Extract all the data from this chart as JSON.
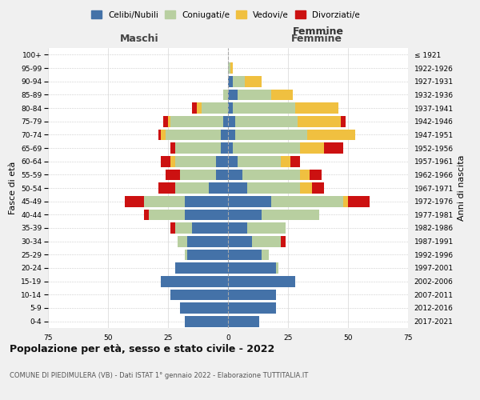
{
  "age_groups": [
    "0-4",
    "5-9",
    "10-14",
    "15-19",
    "20-24",
    "25-29",
    "30-34",
    "35-39",
    "40-44",
    "45-49",
    "50-54",
    "55-59",
    "60-64",
    "65-69",
    "70-74",
    "75-79",
    "80-84",
    "85-89",
    "90-94",
    "95-99",
    "100+"
  ],
  "birth_years": [
    "2017-2021",
    "2012-2016",
    "2007-2011",
    "2002-2006",
    "1997-2001",
    "1992-1996",
    "1987-1991",
    "1982-1986",
    "1977-1981",
    "1972-1976",
    "1967-1971",
    "1962-1966",
    "1957-1961",
    "1952-1956",
    "1947-1951",
    "1942-1946",
    "1937-1941",
    "1932-1936",
    "1927-1931",
    "1922-1926",
    "≤ 1921"
  ],
  "colors": {
    "celibi": "#4472a8",
    "coniugati": "#b8cfa0",
    "vedovi": "#f0c040",
    "divorziati": "#cc1111"
  },
  "maschi": {
    "celibi": [
      18,
      20,
      24,
      28,
      22,
      17,
      17,
      15,
      18,
      18,
      8,
      5,
      5,
      3,
      3,
      2,
      0,
      0,
      0,
      0,
      0
    ],
    "coniugati": [
      0,
      0,
      0,
      0,
      0,
      1,
      4,
      7,
      15,
      17,
      14,
      15,
      17,
      19,
      23,
      22,
      11,
      2,
      0,
      0,
      0
    ],
    "vedovi": [
      0,
      0,
      0,
      0,
      0,
      0,
      0,
      0,
      0,
      0,
      0,
      0,
      2,
      0,
      2,
      1,
      2,
      0,
      0,
      0,
      0
    ],
    "divorziati": [
      0,
      0,
      0,
      0,
      0,
      0,
      0,
      2,
      2,
      8,
      7,
      6,
      4,
      2,
      1,
      2,
      2,
      0,
      0,
      0,
      0
    ]
  },
  "femmine": {
    "celibi": [
      13,
      20,
      20,
      28,
      20,
      14,
      10,
      8,
      14,
      18,
      8,
      6,
      4,
      2,
      3,
      3,
      2,
      4,
      2,
      0,
      0
    ],
    "coniugati": [
      0,
      0,
      0,
      0,
      1,
      3,
      12,
      16,
      24,
      30,
      22,
      24,
      18,
      28,
      30,
      26,
      26,
      14,
      5,
      1,
      0
    ],
    "vedovi": [
      0,
      0,
      0,
      0,
      0,
      0,
      0,
      0,
      0,
      2,
      5,
      4,
      4,
      10,
      20,
      18,
      18,
      9,
      7,
      1,
      0
    ],
    "divorziati": [
      0,
      0,
      0,
      0,
      0,
      0,
      2,
      0,
      0,
      9,
      5,
      5,
      4,
      8,
      0,
      2,
      0,
      0,
      0,
      0,
      0
    ]
  },
  "xlim": 75,
  "title": "Popolazione per età, sesso e stato civile - 2022",
  "subtitle": "COMUNE DI PIEDIMULERA (VB) - Dati ISTAT 1° gennaio 2022 - Elaborazione TUTTITALIA.IT",
  "ylabel_left": "Fasce di età",
  "ylabel_right": "Anni di nascita",
  "xlabel_left": "Maschi",
  "xlabel_right": "Femmine",
  "bg_color": "#f0f0f0",
  "plot_bg": "#ffffff"
}
